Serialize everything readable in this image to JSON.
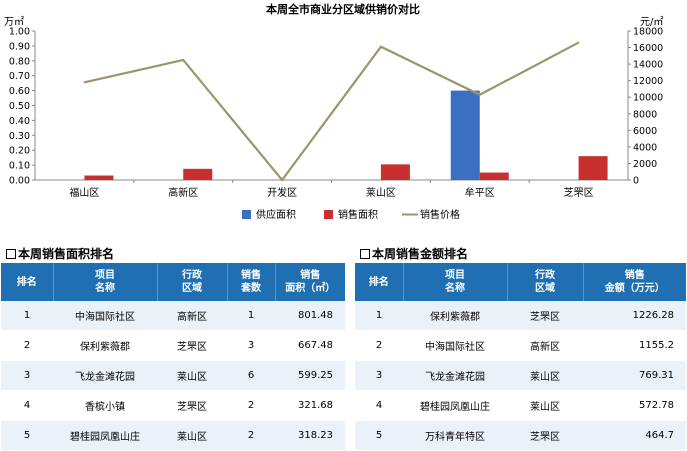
{
  "chart_data": {
    "type": "bar",
    "title": "本周全市商业分区域供销价对比",
    "y_left_unit": "万㎡",
    "y_right_unit": "元/㎡",
    "categories": [
      "福山区",
      "高新区",
      "开发区",
      "莱山区",
      "牟平区",
      "芝罘区"
    ],
    "ylim_left": [
      0,
      1.0
    ],
    "ylim_right": [
      0,
      18000
    ],
    "yticks_left": [
      "0.00",
      "0.10",
      "0.20",
      "0.30",
      "0.40",
      "0.50",
      "0.60",
      "0.70",
      "0.80",
      "0.90",
      "1.00"
    ],
    "yticks_right": [
      "0",
      "2000",
      "4000",
      "6000",
      "8000",
      "10000",
      "12000",
      "14000",
      "16000",
      "18000"
    ],
    "series": [
      {
        "name": "供应面积",
        "kind": "bar",
        "axis": "left",
        "color": "#3b6fc1",
        "values": [
          0,
          0,
          0,
          0,
          0.6,
          0
        ]
      },
      {
        "name": "销售面积",
        "kind": "bar",
        "axis": "left",
        "color": "#c8302f",
        "values": [
          0.03,
          0.075,
          0,
          0.105,
          0.05,
          0.16
        ]
      },
      {
        "name": "销售价格",
        "kind": "line",
        "axis": "right",
        "color": "#9b9668",
        "values": [
          11800,
          14500,
          0,
          16100,
          10300,
          16600
        ]
      }
    ],
    "legend": "bottom",
    "grid": false
  },
  "area_table": {
    "title": "本周销售面积排名",
    "headers": [
      "排名",
      "项目\n名称",
      "行政\n区域",
      "销售\n套数",
      "销售\n面积（㎡）"
    ],
    "rows": [
      [
        "1",
        "中海国际社区",
        "高新区",
        "1",
        "801.48"
      ],
      [
        "2",
        "保利紫薇郡",
        "芝罘区",
        "3",
        "667.48"
      ],
      [
        "3",
        "飞龙金滩花园",
        "莱山区",
        "6",
        "599.25"
      ],
      [
        "4",
        "香槟小镇",
        "芝罘区",
        "2",
        "321.68"
      ],
      [
        "5",
        "碧桂园凤凰山庄",
        "莱山区",
        "2",
        "318.23"
      ]
    ]
  },
  "amount_table": {
    "title": "本周销售金额排名",
    "headers": [
      "排名",
      "项目\n名称",
      "行政\n区域",
      "销售\n金额（万元）"
    ],
    "rows": [
      [
        "1",
        "保利紫薇郡",
        "芝罘区",
        "1226.28"
      ],
      [
        "2",
        "中海国际社区",
        "高新区",
        "1155.2"
      ],
      [
        "3",
        "飞龙金滩花园",
        "莱山区",
        "769.31"
      ],
      [
        "4",
        "碧桂园凤凰山庄",
        "莱山区",
        "572.78"
      ],
      [
        "5",
        "万科青年特区",
        "芝罘区",
        "464.7"
      ]
    ]
  }
}
